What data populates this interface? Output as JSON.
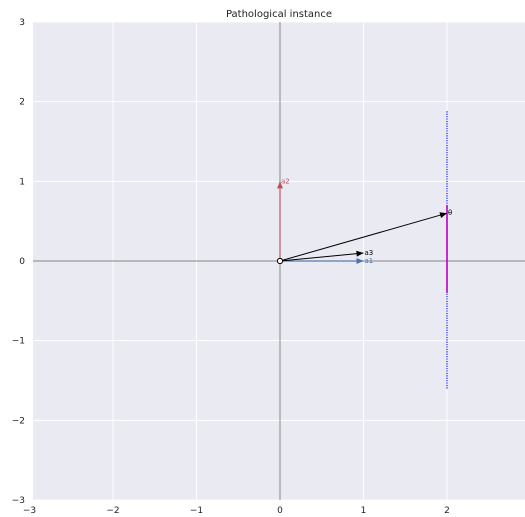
{
  "chart_data": {
    "type": "line",
    "title": "Pathological instance",
    "xlabel": "",
    "ylabel": "",
    "xlim": [
      -3,
      2.9
    ],
    "ylim": [
      -3,
      3
    ],
    "xticks": [
      -3,
      -2,
      -1,
      0,
      1,
      2
    ],
    "yticks": [
      -3,
      -2,
      -1,
      0,
      1,
      2,
      3
    ],
    "grid": true,
    "background": "#eaeaf2",
    "colors": {
      "axis_line": "#9a9a9a",
      "grid": "#ffffff",
      "vec_blue": "#4c72b0",
      "vec_red": "#c44e52",
      "segment_blue": "#0000ff",
      "segment_magenta": "#bf00bf",
      "vec_black": "#000000"
    },
    "series": [
      {
        "label": "a1",
        "color": "#4c72b0",
        "from": [
          0,
          0
        ],
        "to": [
          1,
          0
        ]
      },
      {
        "label": "a2",
        "color": "#c44e52",
        "from": [
          0,
          0
        ],
        "to": [
          0,
          1
        ]
      },
      {
        "label": "a3",
        "color": "#000000",
        "from": [
          0,
          0
        ],
        "to": [
          1.0,
          0.1
        ]
      },
      {
        "label": "θ",
        "color": "#000000",
        "from": [
          0,
          0
        ],
        "to": [
          2.0,
          0.6
        ]
      }
    ],
    "segments": [
      {
        "color": "#0000ff",
        "x": 2.0,
        "y": [
          -1.6,
          1.88
        ],
        "style": "dotted"
      },
      {
        "color": "#bf00bf",
        "x": 2.0,
        "y": [
          -0.4,
          0.7
        ],
        "style": "solid"
      }
    ],
    "origin_marker": [
      0,
      0
    ]
  }
}
